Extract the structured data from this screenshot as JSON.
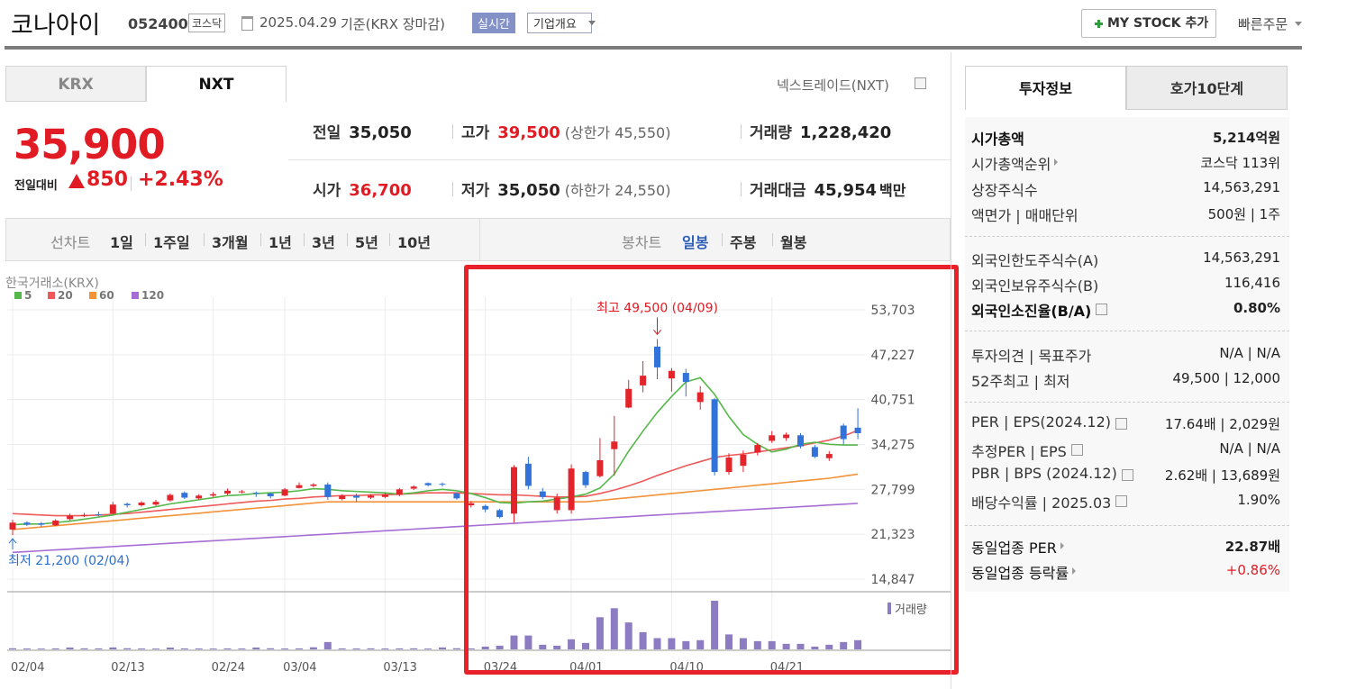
{
  "header": {
    "name": "코나아이",
    "code": "052400",
    "market": "코스닥",
    "date": "2025.04.29",
    "basis": "기준(KRX 장마감)",
    "realtime": "실시간",
    "overview": "기업개요",
    "my_stock": "MY STOCK 추가",
    "quick_order": "빠른주문"
  },
  "market_tabs": {
    "tabs": [
      "KRX",
      "NXT"
    ],
    "nxt_info": "넥스트레이드(NXT)"
  },
  "price": {
    "current": "35,900",
    "change_label": "전일대비",
    "change": "850",
    "change_pct": "+2.43%"
  },
  "stats": [
    {
      "label": "전일",
      "value": "35,050"
    },
    {
      "label": "고가",
      "value": "39,500",
      "note": "(상한가 45,550)"
    },
    {
      "label": "거래량",
      "value": "1,228,420"
    },
    {
      "label": "시가",
      "value": "36,700"
    },
    {
      "label": "저가",
      "value": "35,050",
      "note": "(하한가 24,550)"
    },
    {
      "label": "거래대금",
      "value": "45,954",
      "unit": "백만"
    }
  ],
  "period_tabs": {
    "line_label": "선차트",
    "line": [
      "1일",
      "1주일",
      "3개월",
      "1년",
      "3년",
      "5년",
      "10년"
    ],
    "candle_label": "봉차트",
    "candle": [
      "일봉",
      "주봉",
      "월봉"
    ]
  },
  "chart_data": {
    "type": "candlestick",
    "source": "한국거래소(KRX)",
    "categories": [
      "02/04",
      null,
      null,
      null,
      null,
      null,
      null,
      "02/13",
      null,
      null,
      null,
      null,
      null,
      null,
      "02/24",
      null,
      null,
      null,
      null,
      "03/04",
      null,
      null,
      null,
      null,
      null,
      null,
      "03/13",
      null,
      null,
      null,
      null,
      null,
      null,
      "03/24",
      null,
      null,
      null,
      null,
      null,
      "04/01",
      null,
      null,
      null,
      null,
      null,
      null,
      "04/10",
      null,
      null,
      null,
      null,
      null,
      null,
      "04/21",
      null,
      null,
      null,
      null,
      null,
      null
    ],
    "open": [
      22000,
      23000,
      22900,
      22600,
      23500,
      24000,
      24200,
      24300,
      25700,
      25500,
      25600,
      26200,
      27300,
      26500,
      26900,
      27200,
      27400,
      27300,
      27200,
      26900,
      28000,
      28300,
      28500,
      26400,
      26900,
      26600,
      26700,
      27000,
      27900,
      28700,
      28600,
      27200,
      25500,
      25400,
      24800,
      24300,
      31500,
      27500,
      24800,
      24800,
      30300,
      29700,
      33600,
      39600,
      42800,
      48400,
      43800,
      44600,
      40400,
      40800,
      30300,
      31200,
      33100,
      34800,
      35200,
      35600,
      33900,
      32300,
      37000,
      36700
    ],
    "high": [
      23400,
      23200,
      23100,
      23500,
      24300,
      24400,
      24600,
      26000,
      25900,
      26100,
      26300,
      27200,
      27500,
      27100,
      27400,
      27900,
      27700,
      27500,
      27300,
      28000,
      28800,
      28700,
      28800,
      27100,
      27200,
      27100,
      27300,
      28000,
      28400,
      28800,
      28800,
      27400,
      26100,
      25600,
      25000,
      31300,
      32500,
      28000,
      27200,
      31400,
      30500,
      35200,
      38400,
      43600,
      46300,
      49500,
      45300,
      45200,
      42700,
      41000,
      33000,
      33400,
      34500,
      36200,
      36000,
      35900,
      34200,
      33300,
      37300,
      39500
    ],
    "low": [
      21200,
      22500,
      22400,
      22500,
      23300,
      23800,
      23900,
      24200,
      25200,
      25300,
      25400,
      26000,
      26400,
      26300,
      26700,
      27000,
      27200,
      26700,
      26500,
      26800,
      27900,
      28100,
      26300,
      26200,
      26000,
      26400,
      26500,
      26800,
      27700,
      28200,
      28200,
      26300,
      25200,
      24500,
      23600,
      23000,
      27800,
      26400,
      24300,
      24300,
      28000,
      29500,
      29800,
      39500,
      41800,
      43700,
      41900,
      41200,
      39300,
      29800,
      29900,
      30300,
      32700,
      34500,
      34800,
      33700,
      32300,
      31900,
      34300,
      35050
    ],
    "close": [
      23000,
      22700,
      22700,
      23300,
      24000,
      24100,
      24100,
      25600,
      25500,
      25900,
      26000,
      27000,
      26600,
      26900,
      27100,
      27600,
      27500,
      27200,
      26800,
      27800,
      28400,
      28500,
      26700,
      26900,
      26600,
      26900,
      27100,
      27800,
      28200,
      28400,
      28500,
      26500,
      25800,
      24900,
      23800,
      31000,
      28300,
      26700,
      26600,
      30800,
      28400,
      32000,
      34700,
      42300,
      44200,
      45400,
      44900,
      43300,
      41800,
      30300,
      32400,
      32800,
      34200,
      35600,
      35700,
      34000,
      32500,
      32900,
      35050,
      35900
    ],
    "up_color": "#e3242b",
    "down_color": "#3173d8",
    "volume": {
      "label": "거래량",
      "color": "#8e7cc3",
      "values": [
        150000,
        120000,
        110000,
        130000,
        250000,
        140000,
        130000,
        260000,
        150000,
        120000,
        110000,
        240000,
        130000,
        120000,
        110000,
        130000,
        120000,
        250000,
        150000,
        120000,
        130000,
        280000,
        980000,
        130000,
        120000,
        140000,
        120000,
        130000,
        140000,
        110000,
        260000,
        150000,
        130000,
        370000,
        490000,
        1850000,
        1850000,
        620000,
        490000,
        1350000,
        860000,
        4300000,
        5500000,
        3600000,
        2300000,
        1500000,
        1500000,
        1100000,
        1230000,
        6500000,
        2000000,
        1500000,
        1100000,
        1100000,
        740000,
        740000,
        370000,
        620000,
        980000,
        1228420
      ]
    },
    "moving_averages": [
      {
        "name": "5",
        "color": "#55b84a",
        "values": [
          22700,
          22800,
          22800,
          23000,
          23200,
          23500,
          23800,
          24100,
          24500,
          24900,
          25300,
          25700,
          26000,
          26300,
          26600,
          26900,
          27000,
          27200,
          27300,
          27400,
          27600,
          27900,
          27800,
          27600,
          27500,
          27400,
          27300,
          27100,
          27300,
          27600,
          27800,
          27600,
          27200,
          26600,
          25900,
          25800,
          26000,
          26100,
          26400,
          26700,
          27100,
          28000,
          30000,
          33300,
          36200,
          38900,
          41200,
          43300,
          43900,
          41500,
          38300,
          35700,
          34300,
          33200,
          33600,
          34300,
          34600,
          34300,
          34200,
          34200
        ]
      },
      {
        "name": "20",
        "color": "#ee5a5a",
        "values": [
          24300,
          24200,
          24100,
          24000,
          24000,
          24000,
          24100,
          24200,
          24300,
          24500,
          24700,
          24900,
          25100,
          25300,
          25500,
          25700,
          25900,
          26100,
          26200,
          26400,
          26500,
          26700,
          26800,
          26900,
          26900,
          27000,
          27000,
          27100,
          27200,
          27300,
          27300,
          27300,
          27200,
          27100,
          27000,
          27000,
          26900,
          26800,
          26700,
          26700,
          26800,
          27200,
          27700,
          28300,
          29000,
          29800,
          30500,
          31200,
          31800,
          32400,
          32700,
          32900,
          33200,
          33500,
          33800,
          34100,
          34500,
          34900,
          35500,
          36300
        ]
      },
      {
        "name": "60",
        "color": "#f4923a",
        "values": [
          22000,
          22180,
          22360,
          22550,
          22730,
          22910,
          23090,
          23270,
          23450,
          23640,
          23820,
          24000,
          24180,
          24360,
          24550,
          24730,
          24910,
          25090,
          25270,
          25450,
          25640,
          25820,
          26000,
          26000,
          26000,
          26000,
          26000,
          26000,
          26000,
          26000,
          26000,
          26000,
          26000,
          26000,
          26000,
          26000,
          26000,
          26000,
          26000,
          26000,
          26000,
          26200,
          26400,
          26600,
          26800,
          27000,
          27200,
          27400,
          27600,
          27800,
          28000,
          28200,
          28400,
          28600,
          28800,
          29000,
          29200,
          29400,
          29700,
          30000
        ]
      },
      {
        "name": "120",
        "color": "#a66dd4",
        "values": [
          18700,
          18820,
          18940,
          19060,
          19180,
          19300,
          19420,
          19540,
          19660,
          19780,
          19900,
          20020,
          20140,
          20260,
          20380,
          20500,
          20620,
          20740,
          20860,
          20980,
          21100,
          21220,
          21340,
          21460,
          21580,
          21700,
          21820,
          21940,
          22060,
          22180,
          22300,
          22420,
          22540,
          22660,
          22780,
          22900,
          23020,
          23140,
          23260,
          23380,
          23500,
          23620,
          23740,
          23860,
          23980,
          24100,
          24220,
          24340,
          24460,
          24580,
          24700,
          24820,
          24940,
          25060,
          25180,
          25300,
          25420,
          25540,
          25660,
          25780
        ]
      }
    ],
    "high_label": "최고 49,500 (04/09)",
    "low_label": "최저 21,200 (02/04)",
    "ylim": [
      14847,
      53703
    ],
    "yticks": [
      {
        "value": 14847,
        "label": "14,847"
      },
      {
        "value": 21323,
        "label": "21,323"
      },
      {
        "value": 27799,
        "label": "27,799"
      },
      {
        "value": 34275,
        "label": "34,275"
      },
      {
        "value": 40751,
        "label": "40,751"
      },
      {
        "value": 47227,
        "label": "47,227"
      },
      {
        "value": 53703,
        "label": "53,703"
      }
    ],
    "grid": true
  },
  "invest_tabs": [
    "투자정보",
    "호가10단계"
  ],
  "invest_info": [
    [
      {
        "label": "시가총액",
        "value": "5,214억원"
      },
      {
        "label": "시가총액순위",
        "value": "코스닥 113위"
      },
      {
        "label": "상장주식수",
        "value": "14,563,291"
      },
      {
        "label": "액면가 | 매매단위",
        "value": "500원 | 1주"
      }
    ],
    [
      {
        "label": "외국인한도주식수(A)",
        "value": "14,563,291"
      },
      {
        "label": "외국인보유주식수(B)",
        "value": "116,416"
      },
      {
        "label": "외국인소진율(B/A)",
        "value": "0.80%"
      }
    ],
    [
      {
        "label": "투자의견 | 목표주가",
        "value": "N/A | N/A"
      },
      {
        "label": "52주최고 | 최저",
        "value": "49,500 | 12,000"
      }
    ],
    [
      {
        "label": "PER | EPS(2024.12)",
        "value": "17.64배 | 2,029원"
      },
      {
        "label": "추정PER | EPS",
        "value": "N/A | N/A"
      },
      {
        "label": "PBR | BPS (2024.12)",
        "value": "2.62배 | 13,689원"
      },
      {
        "label": "배당수익률 | 2025.03",
        "value": "1.90%"
      }
    ],
    [
      {
        "label": "동일업종 PER",
        "value": "22.87배"
      },
      {
        "label": "동일업종 등락률",
        "value": "+0.86%"
      }
    ]
  ]
}
